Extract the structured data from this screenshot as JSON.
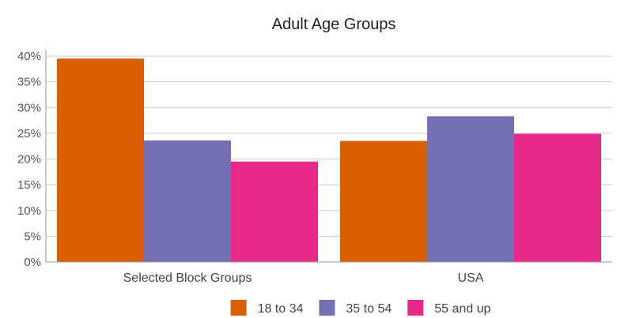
{
  "chart_data": {
    "type": "bar",
    "title": "Adult Age Groups",
    "categories": [
      "Selected Block Groups",
      "USA"
    ],
    "series": [
      {
        "name": "18 to 34",
        "values": [
          39.5,
          23.5
        ],
        "color": "#d95f02"
      },
      {
        "name": "35 to 54",
        "values": [
          23.6,
          28.3
        ],
        "color": "#7570b3"
      },
      {
        "name": "55 and up",
        "values": [
          19.5,
          24.9
        ],
        "color": "#e7298a"
      }
    ],
    "ylim": [
      0,
      40
    ],
    "yticks": [
      0,
      5,
      10,
      15,
      20,
      25,
      30,
      35,
      40
    ],
    "ytick_labels": [
      "0%",
      "5%",
      "10%",
      "15%",
      "20%",
      "25%",
      "30%",
      "35%",
      "40%"
    ],
    "xlabel": "",
    "ylabel": "",
    "grid": true,
    "legend_position": "bottom"
  }
}
